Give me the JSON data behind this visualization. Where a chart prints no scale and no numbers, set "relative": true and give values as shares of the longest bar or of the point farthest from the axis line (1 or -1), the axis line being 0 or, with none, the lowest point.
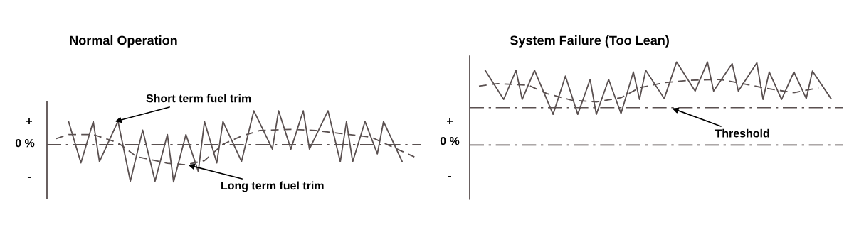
{
  "chart_data": [
    {
      "type": "line",
      "title": "Normal Operation",
      "relative": true,
      "categories": [
        null,
        null,
        null,
        null,
        null,
        null,
        null,
        null,
        null,
        null,
        null,
        null,
        null,
        null,
        null,
        null,
        null,
        null,
        null,
        null,
        null,
        null,
        null,
        null,
        null,
        null,
        null,
        null,
        null,
        null,
        null,
        null,
        null,
        null,
        null,
        null,
        null,
        null,
        null,
        null,
        null,
        null,
        null,
        null,
        null,
        null,
        null,
        null,
        null,
        null,
        null,
        null,
        null,
        null,
        null,
        null,
        null,
        null,
        null,
        null
      ],
      "ref_lines": [
        {
          "axis": "y",
          "value": 0,
          "color": "#5a5050",
          "line_style": "dashdot"
        }
      ],
      "annotations": [
        "+",
        "0 %",
        "-",
        "Short term fuel trim",
        "Long term fuel trim"
      ],
      "series": [
        {
          "color": "#5a5050",
          "line_style": "solid",
          "values": [
            null,
            null,
            null,
            0.62,
            null,
            -0.49,
            null,
            0.62,
            -0.46,
            null,
            null,
            0.63,
            null,
            -0.98,
            null,
            0.39,
            null,
            -0.98,
            null,
            0.27,
            -1,
            null,
            0.27,
            null,
            -0.72,
            0.62,
            null,
            -0.49,
            0.62,
            null,
            null,
            -0.45,
            null,
            0.91,
            null,
            null,
            -0.12,
            0.91,
            null,
            -0.12,
            null,
            0.91,
            -0.12,
            null,
            null,
            0.91,
            null,
            -0.46,
            0.62,
            -0.46,
            null,
            0.62,
            null,
            -0.25,
            0.62,
            null,
            null,
            -0.45,
            null,
            null
          ]
        },
        {
          "color": "#5a5050",
          "line_style": "dashed",
          "values": [
            null,
            0.16,
            null,
            0.27,
            null,
            null,
            null,
            0.27,
            null,
            null,
            null,
            0.05,
            null,
            null,
            -0.32,
            null,
            null,
            null,
            null,
            -0.5,
            null,
            null,
            -0.54,
            null,
            null,
            -0.43,
            null,
            null,
            0.01,
            null,
            null,
            0.23,
            null,
            null,
            0.38,
            null,
            null,
            null,
            null,
            0.41,
            null,
            null,
            null,
            0.38,
            null,
            null,
            null,
            0.3,
            null,
            null,
            null,
            null,
            0.2,
            null,
            null,
            -0.03,
            null,
            null,
            null,
            -0.33
          ]
        }
      ]
    },
    {
      "type": "line",
      "title": "System Failure (Too Lean)",
      "relative": true,
      "categories": [
        null,
        null,
        null,
        null,
        null,
        null,
        null,
        null,
        null,
        null,
        null,
        null,
        null,
        null,
        null,
        null,
        null,
        null,
        null,
        null,
        null,
        null,
        null,
        null,
        null,
        null,
        null,
        null,
        null,
        null,
        null,
        null,
        null,
        null,
        null,
        null,
        null,
        null,
        null,
        null,
        null,
        null,
        null,
        null,
        null,
        null,
        null,
        null,
        null,
        null,
        null,
        null,
        null,
        null,
        null,
        null,
        null,
        null,
        null,
        null
      ],
      "ref_lines": [
        {
          "axis": "y",
          "value": 0,
          "color": "#5a5050",
          "line_style": "dashdot"
        },
        {
          "axis": "y",
          "value": 0.45,
          "color": "#5a5050",
          "line_style": "dashdot"
        }
      ],
      "annotations": [
        "+",
        "0 %",
        "-",
        {
          "text": "Threshold",
          "y": 0.45
        }
      ],
      "series": [
        {
          "color": "#5a5050",
          "line_style": "solid",
          "values": [
            null,
            null,
            0.9,
            null,
            null,
            0.55,
            null,
            0.9,
            0.55,
            null,
            0.9,
            null,
            null,
            0.37,
            null,
            0.83,
            null,
            0.37,
            null,
            0.79,
            0.37,
            null,
            0.79,
            null,
            0.38,
            null,
            0.88,
            0.55,
            0.9,
            null,
            null,
            0.56,
            null,
            1,
            null,
            null,
            0.65,
            null,
            1,
            0.65,
            null,
            null,
            0.98,
            0.65,
            null,
            null,
            0.99,
            0.55,
            0.88,
            null,
            0.55,
            null,
            0.88,
            null,
            0.56,
            0.89,
            null,
            null,
            0.56,
            null
          ]
        },
        {
          "color": "#5a5050",
          "line_style": "dashed",
          "values": [
            null,
            0.71,
            null,
            null,
            0.74,
            null,
            null,
            null,
            null,
            0.72,
            null,
            null,
            0.62,
            null,
            null,
            null,
            0.54,
            null,
            null,
            null,
            0.52,
            null,
            null,
            null,
            0.57,
            null,
            null,
            0.69,
            null,
            null,
            null,
            0.75,
            null,
            null,
            null,
            0.78,
            null,
            null,
            null,
            null,
            0.79,
            null,
            null,
            0.75,
            null,
            null,
            null,
            0.69,
            null,
            null,
            null,
            null,
            0.63,
            null,
            null,
            null,
            0.69,
            null,
            null,
            null
          ]
        }
      ]
    }
  ]
}
